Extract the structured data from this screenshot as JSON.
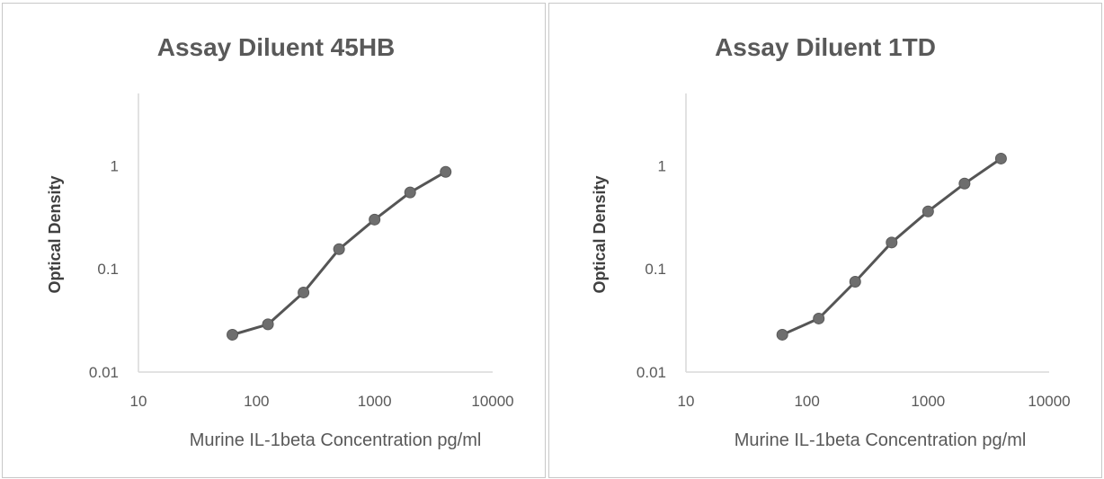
{
  "chart_data": [
    {
      "type": "line",
      "title": "Assay Diluent 45HB",
      "xlabel": "Murine IL-1beta Concentration pg/ml",
      "ylabel": "Optical Density",
      "xscale": "log",
      "yscale": "log",
      "xlim": [
        10,
        10000
      ],
      "ylim": [
        0.01,
        5
      ],
      "xticks": [
        "10",
        "100",
        "1000",
        "10000"
      ],
      "yticks": [
        "0.01",
        "0.1",
        "1"
      ],
      "grid": false,
      "x": [
        62.5,
        125,
        250,
        500,
        1000,
        2000,
        4000
      ],
      "y": [
        0.023,
        0.029,
        0.059,
        0.155,
        0.3,
        0.55,
        0.87
      ],
      "color": "#6e6e6e"
    },
    {
      "type": "line",
      "title": "Assay Diluent 1TD",
      "xlabel": "Murine IL-1beta Concentration pg/ml",
      "ylabel": "Optical Density",
      "xscale": "log",
      "yscale": "log",
      "xlim": [
        10,
        10000
      ],
      "ylim": [
        0.01,
        5
      ],
      "xticks": [
        "10",
        "100",
        "1000",
        "10000"
      ],
      "yticks": [
        "0.01",
        "0.1",
        "1"
      ],
      "grid": false,
      "x": [
        62.5,
        125,
        250,
        500,
        1000,
        2000,
        4000
      ],
      "y": [
        0.023,
        0.033,
        0.075,
        0.18,
        0.36,
        0.67,
        1.17
      ],
      "color": "#6e6e6e"
    }
  ]
}
